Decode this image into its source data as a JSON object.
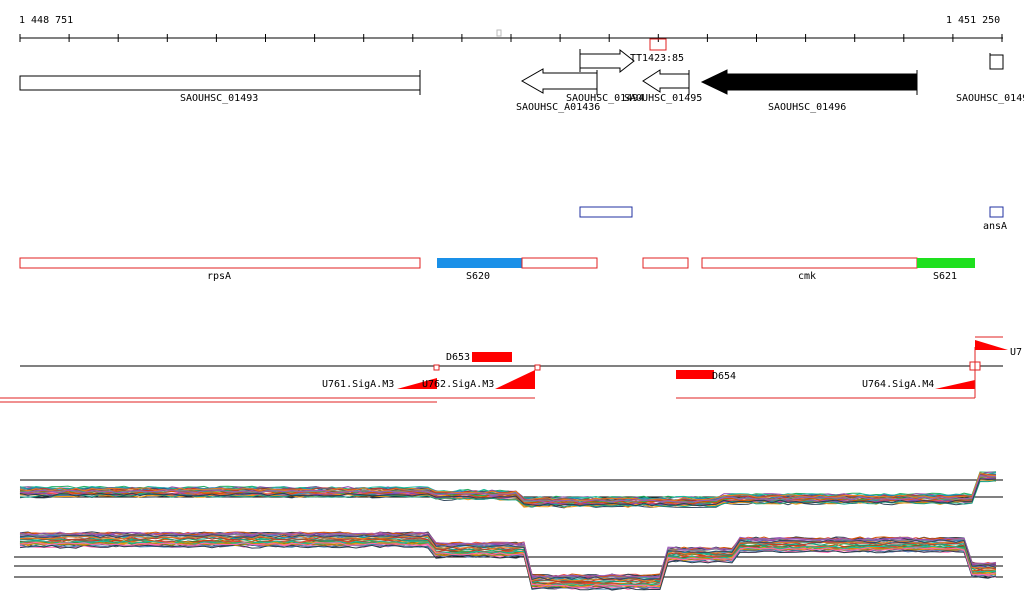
{
  "ruler": {
    "start_label": "1 448 751",
    "end_label": "1 451 250",
    "start": 1448751,
    "end": 1451250
  },
  "genes": [
    {
      "label": "SAOUHSC_01493",
      "strand": "+",
      "filled": false
    },
    {
      "label": "SAOUHSC_A01436",
      "strand": "-",
      "filled": false
    },
    {
      "label": "SAOUHSC_01494",
      "strand": "+",
      "filled": false
    },
    {
      "label": "SAOUHSC_01495",
      "strand": "-",
      "filled": false
    },
    {
      "label": "SAOUHSC_01496",
      "strand": "-",
      "filled": true
    },
    {
      "label": "SAOUHSC_0149",
      "strand": "+",
      "filled": false
    }
  ],
  "terminator": {
    "label": "TT142",
    "overlap_label": "3:85"
  },
  "annotations": {
    "ansA_label": "ansA",
    "operons": [
      {
        "label": "rpsA"
      },
      {
        "label": "cmk"
      }
    ],
    "segments": [
      {
        "label": "S620",
        "color": "#1a90e8"
      },
      {
        "label": "S621",
        "color": "#1ee01e"
      }
    ]
  },
  "features": {
    "downs": [
      {
        "label": "D653"
      },
      {
        "label": "D654"
      }
    ],
    "ups": [
      {
        "label": "U761.SigA.M3"
      },
      {
        "label": "U762.SigA.M3"
      },
      {
        "label": "U764.SigA.M4"
      },
      {
        "label": "U7"
      }
    ]
  },
  "colors": {
    "gene_filled": "#000000",
    "operon_outline": "#e02020",
    "feature_red": "#ff0000",
    "transcript_box": "#2030a0"
  }
}
